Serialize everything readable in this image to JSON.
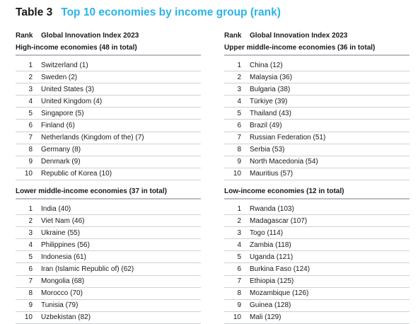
{
  "title": {
    "number": "Table 3",
    "text": "Top 10 economies by income group (rank)"
  },
  "headers": {
    "rank": "Rank",
    "index": "Global Innovation Index 2023"
  },
  "groups": {
    "high": {
      "label": "High-income economies (48 in total)",
      "rows": [
        {
          "rank": "1",
          "name": "Switzerland (1)"
        },
        {
          "rank": "2",
          "name": "Sweden (2)"
        },
        {
          "rank": "3",
          "name": "United States (3)"
        },
        {
          "rank": "4",
          "name": "United Kingdom (4)"
        },
        {
          "rank": "5",
          "name": "Singapore (5)"
        },
        {
          "rank": "6",
          "name": "Finland (6)"
        },
        {
          "rank": "7",
          "name": "Netherlands (Kingdom of the) (7)"
        },
        {
          "rank": "8",
          "name": "Germany (8)"
        },
        {
          "rank": "9",
          "name": "Denmark (9)"
        },
        {
          "rank": "10",
          "name": "Republic of Korea (10)"
        }
      ]
    },
    "upper_middle": {
      "label": "Upper middle-income economies (36 in total)",
      "rows": [
        {
          "rank": "1",
          "name": "China (12)"
        },
        {
          "rank": "2",
          "name": "Malaysia (36)"
        },
        {
          "rank": "3",
          "name": "Bulgaria (38)"
        },
        {
          "rank": "4",
          "name": "Türkiye (39)"
        },
        {
          "rank": "5",
          "name": "Thailand (43)"
        },
        {
          "rank": "6",
          "name": "Brazil (49)"
        },
        {
          "rank": "7",
          "name": "Russian Federation (51)"
        },
        {
          "rank": "8",
          "name": "Serbia (53)"
        },
        {
          "rank": "9",
          "name": "North Macedonia (54)"
        },
        {
          "rank": "10",
          "name": "Mauritius (57)"
        }
      ]
    },
    "lower_middle": {
      "label": "Lower middle-income economies (37 in total)",
      "rows": [
        {
          "rank": "1",
          "name": "India (40)"
        },
        {
          "rank": "2",
          "name": "Viet Nam (46)"
        },
        {
          "rank": "3",
          "name": "Ukraine (55)"
        },
        {
          "rank": "4",
          "name": "Philippines (56)"
        },
        {
          "rank": "5",
          "name": "Indonesia (61)"
        },
        {
          "rank": "6",
          "name": "Iran (Islamic Republic of) (62)"
        },
        {
          "rank": "7",
          "name": "Mongolia (68)"
        },
        {
          "rank": "8",
          "name": "Morocco (70)"
        },
        {
          "rank": "9",
          "name": "Tunisia (79)"
        },
        {
          "rank": "10",
          "name": "Uzbekistan (82)"
        }
      ]
    },
    "low": {
      "label": "Low-income economies (12 in total)",
      "rows": [
        {
          "rank": "1",
          "name": "Rwanda (103)"
        },
        {
          "rank": "2",
          "name": "Madagascar (107)"
        },
        {
          "rank": "3",
          "name": "Togo (114)"
        },
        {
          "rank": "4",
          "name": "Zambia (118)"
        },
        {
          "rank": "5",
          "name": "Uganda (121)"
        },
        {
          "rank": "6",
          "name": "Burkina Faso (124)"
        },
        {
          "rank": "7",
          "name": "Ethiopia (125)"
        },
        {
          "rank": "8",
          "name": "Mozambique (126)"
        },
        {
          "rank": "9",
          "name": "Guinea (128)"
        },
        {
          "rank": "10",
          "name": "Mali (129)"
        }
      ]
    }
  },
  "colors": {
    "title_accent": "#2bb3e6",
    "rule": "#b9bfc7",
    "row_border": "#cdd2d8"
  }
}
